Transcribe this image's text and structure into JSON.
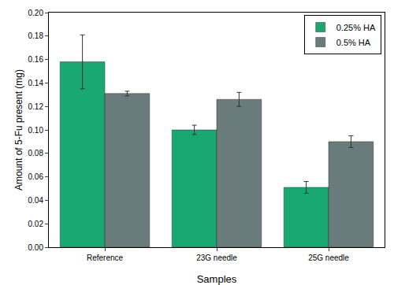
{
  "chart_data": {
    "type": "bar",
    "x_label": "Samples",
    "y_label": "Amount of 5-Fu present (mg)",
    "categories": [
      "Reference",
      "23G needle",
      "25G needle"
    ],
    "series": [
      {
        "name": "0.25% HA",
        "color": "#1aa872",
        "values": [
          0.158,
          0.1,
          0.051
        ],
        "errors": [
          0.023,
          0.004,
          0.005
        ]
      },
      {
        "name": "0.5% HA",
        "color": "#6a7b7b",
        "values": [
          0.131,
          0.126,
          0.09
        ],
        "errors": [
          0.002,
          0.006,
          0.005
        ]
      }
    ],
    "ylim": [
      0,
      0.2
    ],
    "yticks": [
      {
        "value": 0,
        "label": "0.00"
      },
      {
        "value": 0.02,
        "label": "0.02"
      },
      {
        "value": 0.04,
        "label": "0.04"
      },
      {
        "value": 0.06,
        "label": "0.06"
      },
      {
        "value": 0.08,
        "label": "0.08"
      },
      {
        "value": 0.1,
        "label": "0.10"
      },
      {
        "value": 0.12,
        "label": "0.12"
      },
      {
        "value": 0.14,
        "label": "0.14"
      },
      {
        "value": 0.16,
        "label": "0.16"
      },
      {
        "value": 0.18,
        "label": "0.18"
      },
      {
        "value": 0.2,
        "label": "0.20"
      }
    ],
    "grid": false,
    "legend": "top-right"
  }
}
